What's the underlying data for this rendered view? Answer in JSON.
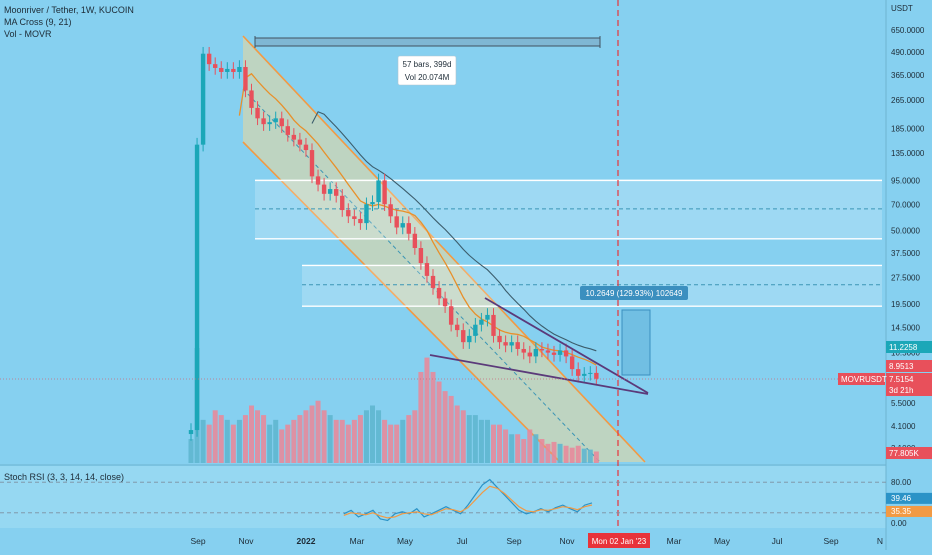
{
  "header": {
    "symbol_line": "Moonriver / Tether, 1W, KUCOIN",
    "indicator_1": "MA Cross (9, 21)",
    "indicator_2": "Vol - MOVR"
  },
  "colors": {
    "background": "#86d0f0",
    "bull": "#1ba7b8",
    "bear": "#e8505b",
    "vol_bull": "#5fb6cf",
    "vol_bear": "#e78a9b",
    "channel_border": "#f29a44",
    "channel_fill": "#ecd79a",
    "ma_fast": "#e8902a",
    "ma_slow": "#3c5d6c",
    "triangle_line": "#5b3a7a",
    "crosshair": "#e8333a",
    "rsi_k": "#2b93c7",
    "rsi_d": "#f29a44"
  },
  "axis": {
    "currency": "USDT",
    "price_ticks": [
      "650.0000",
      "490.0000",
      "365.0000",
      "265.0000",
      "185.0000",
      "135.0000",
      "95.0000",
      "70.0000",
      "50.0000",
      "37.5000",
      "27.5000",
      "19.5000",
      "14.5000",
      "10.5000",
      "7.5000",
      "5.5000",
      "4.1000",
      "3.1000"
    ],
    "time_ticks": [
      "Sep",
      "Nov",
      "2022",
      "Mar",
      "May",
      "Jul",
      "Sep",
      "Nov",
      "Mar",
      "May",
      "Jul",
      "Sep",
      "N"
    ],
    "crosshair_date": "Mon 02 Jan '23",
    "rsi_ticks": [
      "80.00",
      "20.00",
      "0.00"
    ]
  },
  "price_labels": {
    "ma_fast": "11.2258",
    "ma_slow": "8.9513",
    "current_price": "7.5154",
    "countdown": "3d 21h",
    "volume": "77.805K",
    "symbol_tag": "MOVRUSDT"
  },
  "rsi_labels": {
    "k": "39.46",
    "d": "35.35"
  },
  "rsi_title": "Stoch RSI (3, 3, 14, 14, close)",
  "annotations": {
    "range_bars": "57 bars, 399d",
    "range_vol": "Vol 20.074M",
    "target": "10.2649 (129.93%) 102649"
  },
  "chart_data": {
    "type": "candlestick",
    "symbol": "MOVRUSDT",
    "exchange": "KUCOIN",
    "interval": "1W",
    "y_scale": "log",
    "ylim": [
      3.1,
      650
    ],
    "weekly_close": [
      3.9,
      150,
      480,
      420,
      400,
      380,
      395,
      380,
      405,
      300,
      240,
      210,
      195,
      200,
      210,
      190,
      170,
      160,
      150,
      140,
      100,
      90,
      80,
      85,
      78,
      65,
      60,
      58,
      55,
      70,
      72,
      95,
      70,
      60,
      52,
      55,
      48,
      40,
      33,
      28,
      24,
      21,
      19,
      15,
      14,
      12,
      13,
      15,
      16,
      17,
      13,
      12,
      11.5,
      12,
      11,
      10.5,
      10,
      11,
      10.8,
      10.5,
      10.2,
      10.8,
      10,
      8.5,
      7.8,
      8.0,
      8.1,
      7.5154
    ],
    "weekly_volume_k": [
      25,
      120,
      45,
      40,
      55,
      50,
      45,
      40,
      45,
      50,
      60,
      55,
      50,
      40,
      45,
      35,
      40,
      45,
      50,
      55,
      60,
      65,
      55,
      50,
      45,
      45,
      40,
      45,
      50,
      55,
      60,
      55,
      45,
      40,
      40,
      45,
      50,
      55,
      95,
      110,
      95,
      85,
      75,
      70,
      60,
      55,
      50,
      50,
      45,
      45,
      40,
      40,
      35,
      30,
      30,
      25,
      35,
      30,
      25,
      20,
      22,
      20,
      18,
      16,
      18,
      15,
      14,
      12
    ],
    "target_pct": 129.93,
    "channel_levels": [
      95,
      70,
      50,
      32,
      25,
      19.5
    ],
    "stoch_rsi_k": [
      0,
      0,
      0,
      0,
      0,
      0,
      0,
      0,
      0,
      0,
      0,
      0,
      0,
      0,
      0,
      0,
      0,
      0,
      0,
      0,
      0,
      0,
      0,
      0,
      0,
      0,
      0,
      0,
      0,
      0,
      0,
      0,
      0,
      0,
      0,
      0,
      0,
      0,
      0,
      0,
      0,
      0,
      0,
      0,
      0,
      0,
      18,
      25,
      12,
      18,
      25,
      8,
      5,
      18,
      22,
      18,
      28,
      12,
      18,
      25,
      32,
      25,
      18,
      35,
      55,
      75,
      85,
      70,
      55,
      40,
      25,
      18,
      22,
      28,
      22,
      30,
      35,
      28,
      22,
      35,
      39.46
    ],
    "stoch_rsi_d": [
      0,
      0,
      0,
      0,
      0,
      0,
      0,
      0,
      0,
      0,
      0,
      0,
      0,
      0,
      0,
      0,
      0,
      0,
      0,
      0,
      0,
      0,
      0,
      0,
      0,
      0,
      0,
      0,
      0,
      0,
      0,
      0,
      0,
      0,
      0,
      0,
      0,
      0,
      0,
      0,
      0,
      0,
      0,
      0,
      0,
      0,
      15,
      20,
      18,
      16,
      20,
      14,
      10,
      12,
      18,
      20,
      22,
      18,
      16,
      22,
      28,
      26,
      22,
      30,
      45,
      60,
      72,
      68,
      58,
      45,
      32,
      24,
      22,
      26,
      25,
      28,
      32,
      30,
      26,
      32,
      35.35
    ]
  }
}
